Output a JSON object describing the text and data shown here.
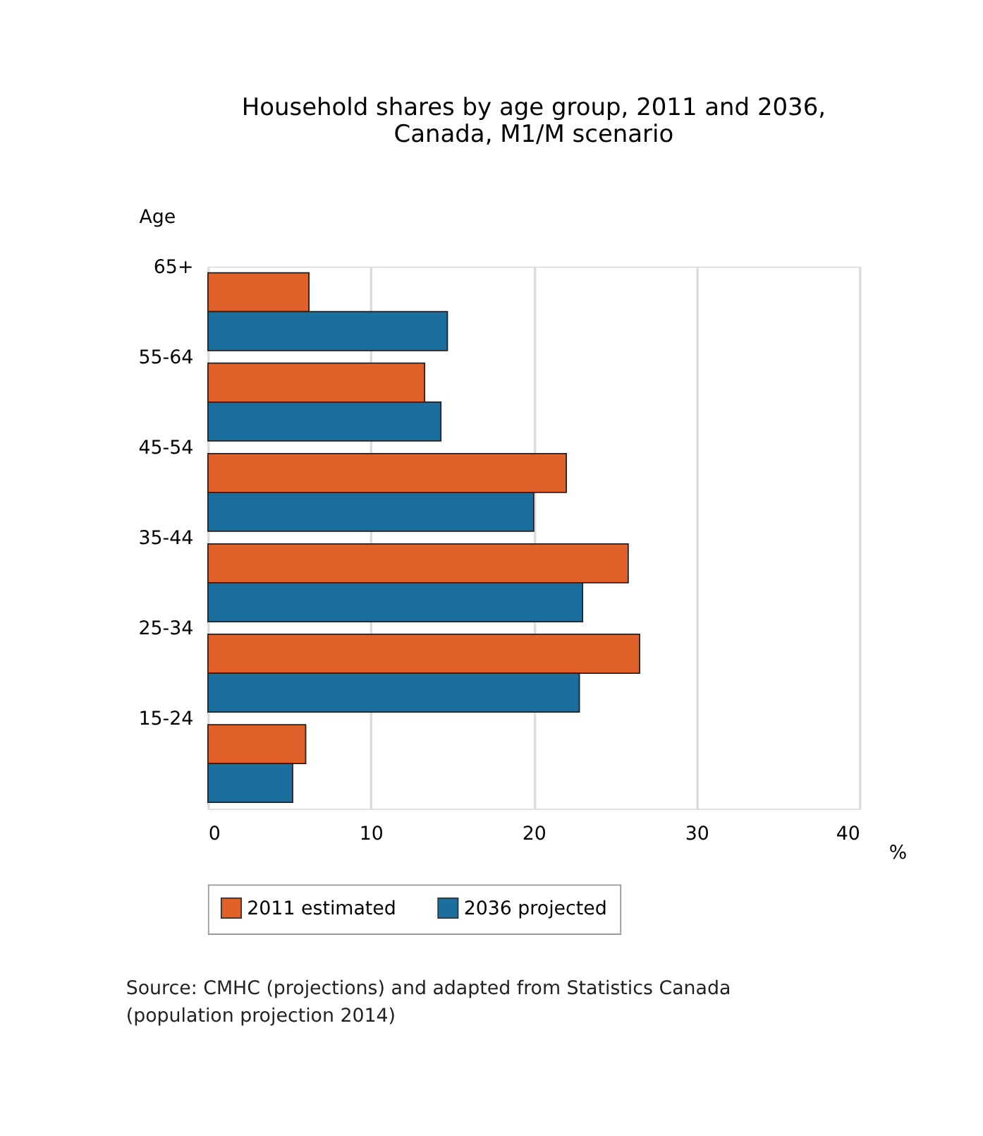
{
  "chart_data": {
    "type": "bar",
    "orientation": "horizontal",
    "title": [
      "Household shares  by age group,  2011 and 2036,",
      "Canada, M1/M scenario"
    ],
    "ylabel": "Age",
    "xlabel": "%",
    "categories": [
      "65+",
      "55-64",
      "45-54",
      "35-44",
      "25-34",
      "15-24"
    ],
    "series": [
      {
        "name": "2011 estimated",
        "color": "#e0622a",
        "values": [
          6.2,
          13.3,
          22.0,
          25.8,
          26.5,
          6.0
        ]
      },
      {
        "name": "2036 projected",
        "color": "#1b6f9e",
        "values": [
          14.7,
          14.3,
          20.0,
          23.0,
          22.8,
          5.2
        ]
      }
    ],
    "xlim": [
      0,
      40
    ],
    "xticks": [
      0,
      10,
      20,
      30,
      40
    ],
    "grid": "x",
    "legend": "bottom",
    "annotations": [
      "Source: CMHC (projections) and adapted from Statistics Canada (population projection 2014)"
    ]
  }
}
